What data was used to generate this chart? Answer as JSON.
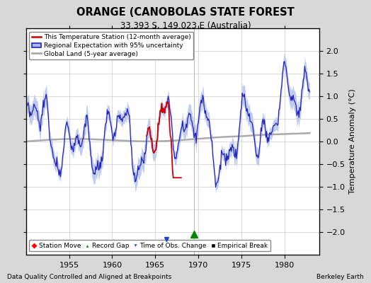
{
  "title": "ORANGE (CANOBOLAS STATE FOREST",
  "subtitle": "33.393 S, 149.023 E (Australia)",
  "ylabel": "Temperature Anomaly (°C)",
  "xlabel_note": "Data Quality Controlled and Aligned at Breakpoints",
  "credit": "Berkeley Earth",
  "xlim": [
    1950,
    1984
  ],
  "ylim": [
    -2.5,
    2.5
  ],
  "yticks": [
    -2.0,
    -1.5,
    -1.0,
    -0.5,
    0.0,
    0.5,
    1.0,
    1.5,
    2.0
  ],
  "xticks": [
    1955,
    1960,
    1965,
    1970,
    1975,
    1980
  ],
  "regional_color": "#2222bb",
  "regional_fill": "#aabbee",
  "station_color": "#cc0000",
  "global_color": "#aaaaaa",
  "bg_color": "#d8d8d8",
  "plot_bg": "#ffffff",
  "record_gap_x": 1969.5,
  "record_gap_y": -2.05,
  "time_obs_x": 1966.3,
  "time_obs_y": -2.2
}
